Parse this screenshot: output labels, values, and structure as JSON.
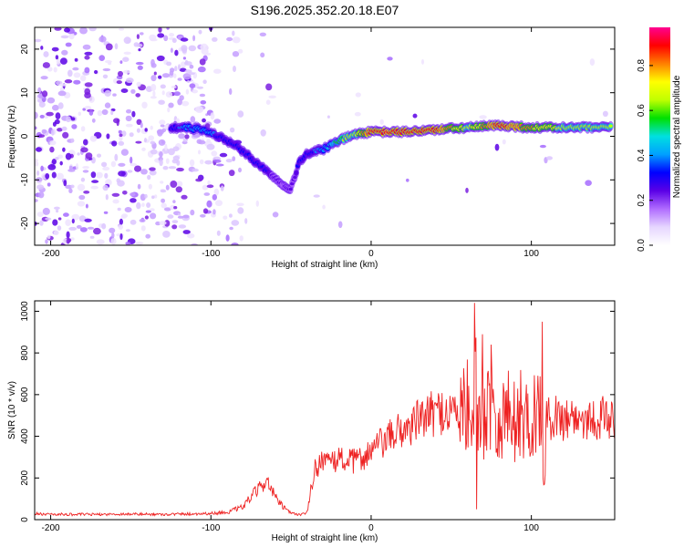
{
  "title": "S196.2025.352.20.18.E07",
  "colors": {
    "snr_line": "#ee2222",
    "spectrogram_dot": "#7a1fe0",
    "colorbar": [
      "#ffffff",
      "#e6d6ff",
      "#b06cff",
      "#5a00e6",
      "#0000ff",
      "#00a0ff",
      "#00e0e0",
      "#00e000",
      "#c0ff00",
      "#ffff00",
      "#ff8000",
      "#ff0000",
      "#ff0090"
    ]
  },
  "chart_data": [
    {
      "type": "heatmap",
      "title": "S196.2025.352.20.18.E07",
      "xlabel": "Height of straight line (km)",
      "ylabel": "Frequency (Hz)",
      "xlim": [
        -210,
        152
      ],
      "ylim": [
        -25,
        25
      ],
      "xticks": [
        -200,
        -100,
        0,
        100
      ],
      "yticks": [
        -20,
        -10,
        0,
        10,
        20
      ],
      "colorbar": {
        "label": "Normalized spectral amplitude",
        "range": [
          0.0,
          0.97
        ],
        "ticks": [
          0.0,
          0.2,
          0.4,
          0.6,
          0.8
        ]
      },
      "ridge": {
        "description": "dominant frequency track (Hz) vs height (km)",
        "x": [
          -125,
          -115,
          -105,
          -95,
          -85,
          -75,
          -65,
          -55,
          -50,
          -45,
          -40,
          -30,
          -20,
          -10,
          0,
          10,
          20,
          40,
          60,
          80,
          100,
          120,
          150
        ],
        "y": [
          2,
          2,
          1.5,
          0,
          -2,
          -5,
          -8,
          -11,
          -12,
          -6,
          -4,
          -3,
          -1,
          0.5,
          1,
          1,
          1,
          1.5,
          2,
          2.5,
          2,
          2,
          2
        ],
        "amplitude": [
          0.35,
          0.4,
          0.45,
          0.35,
          0.3,
          0.3,
          0.3,
          0.2,
          0.25,
          0.3,
          0.35,
          0.4,
          0.6,
          0.7,
          0.9,
          0.95,
          0.9,
          0.9,
          0.7,
          0.9,
          0.8,
          0.7,
          0.65
        ]
      }
    },
    {
      "type": "line",
      "title": "",
      "xlabel": "Height of straight line (km)",
      "ylabel": "SNR (10 * v/v)",
      "xlim": [
        -210,
        152
      ],
      "ylim": [
        0,
        1050
      ],
      "xticks": [
        -200,
        -100,
        0,
        100
      ],
      "yticks": [
        0,
        200,
        400,
        600,
        800,
        1000
      ],
      "series": [
        {
          "name": "SNR",
          "x": [
            -210,
            -190,
            -170,
            -150,
            -130,
            -110,
            -100,
            -90,
            -80,
            -75,
            -70,
            -65,
            -60,
            -55,
            -50,
            -45,
            -40,
            -37,
            -35,
            -30,
            -25,
            -20,
            -15,
            -10,
            -5,
            0,
            5,
            10,
            15,
            20,
            25,
            30,
            35,
            40,
            45,
            50,
            55,
            60,
            62,
            65,
            68,
            70,
            75,
            80,
            85,
            90,
            95,
            100,
            105,
            107,
            110,
            115,
            120,
            125,
            130,
            135,
            140,
            145,
            150
          ],
          "y": [
            28,
            25,
            25,
            27,
            25,
            28,
            30,
            35,
            60,
            110,
            150,
            190,
            110,
            60,
            30,
            25,
            30,
            170,
            240,
            300,
            260,
            300,
            280,
            280,
            300,
            330,
            360,
            380,
            420,
            430,
            450,
            480,
            500,
            510,
            520,
            520,
            520,
            530,
            550,
            780,
            400,
            470,
            620,
            460,
            520,
            480,
            510,
            470,
            560,
            190,
            480,
            500,
            480,
            500,
            480,
            490,
            480,
            490,
            480
          ],
          "spikes": [
            {
              "x": 64.5,
              "y": 1040
            },
            {
              "x": 66,
              "y": 50
            },
            {
              "x": 69.5,
              "y": 890
            },
            {
              "x": 75,
              "y": 840
            },
            {
              "x": 107,
              "y": 950
            },
            {
              "x": 108,
              "y": 170
            }
          ]
        }
      ]
    }
  ]
}
